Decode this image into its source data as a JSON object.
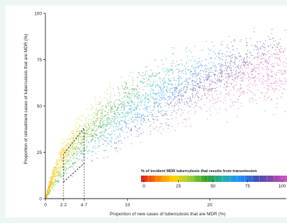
{
  "chart_data": {
    "type": "scatter",
    "title": "",
    "xlabel": "Proportion of new cases of tuberculosis that are MDR (%)",
    "ylabel": "Proportion of retreatment cases of tuberculosis that are MDR (%)",
    "xlim": [
      0,
      30
    ],
    "ylim": [
      0,
      100
    ],
    "x_ticks": [
      {
        "value": 0,
        "label": "0"
      },
      {
        "value": 2.2,
        "label": "2·2"
      },
      {
        "value": 4.7,
        "label": "4·7"
      },
      {
        "value": 10,
        "label": "10"
      },
      {
        "value": 20,
        "label": "20"
      }
    ],
    "y_ticks": [
      {
        "value": 0,
        "label": "0"
      },
      {
        "value": 25,
        "label": "25"
      },
      {
        "value": 50,
        "label": "50"
      },
      {
        "value": 75,
        "label": "75"
      },
      {
        "value": 100,
        "label": "100"
      }
    ],
    "colorbar": {
      "title": "% of incident MDR tuberculosis that results from transmission",
      "range": [
        0,
        100
      ],
      "ticks": [
        {
          "value": 0,
          "label": "0"
        },
        {
          "value": 25,
          "label": "25"
        },
        {
          "value": 50,
          "label": "50"
        },
        {
          "value": 75,
          "label": "75"
        },
        {
          "value": 100,
          "label": "100"
        }
      ],
      "colors": [
        "#e41a1c",
        "#ff7f00",
        "#ffd300",
        "#9acd32",
        "#2ca02c",
        "#20b2aa",
        "#1e90ff",
        "#3f51b5",
        "#8e44ad",
        "#e056c4"
      ]
    },
    "highlight_region": {
      "vertices": [
        [
          2.2,
          9
        ],
        [
          4.7,
          19
        ],
        [
          4.7,
          38
        ],
        [
          2.2,
          24
        ]
      ],
      "style": "dashed"
    },
    "point_cloud": {
      "description_free": true,
      "upper_boundary": [
        [
          0,
          0
        ],
        [
          1,
          20
        ],
        [
          2,
          33
        ],
        [
          3,
          42
        ],
        [
          4.7,
          52
        ],
        [
          7,
          62
        ],
        [
          10,
          72
        ],
        [
          15,
          83
        ],
        [
          20,
          90
        ],
        [
          25,
          95
        ],
        [
          30,
          97
        ]
      ],
      "lower_boundary": [
        [
          0,
          0
        ],
        [
          2,
          6
        ],
        [
          4.7,
          12
        ],
        [
          10,
          22
        ],
        [
          15,
          30
        ],
        [
          20,
          36
        ],
        [
          25,
          40
        ],
        [
          30,
          44
        ]
      ],
      "color_by_slope": true
    },
    "grid": false,
    "legend_position": "bottom-right"
  }
}
